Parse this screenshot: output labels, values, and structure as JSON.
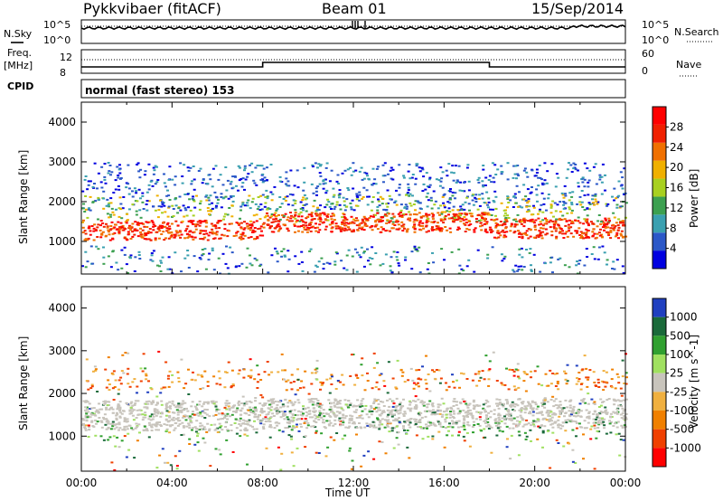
{
  "header": {
    "station": "Pykkvibaer (fitACF)",
    "beam": "Beam 01",
    "date": "15/Sep/2014"
  },
  "noise_panel": {
    "left_label": "N.Sky",
    "left_ticks": [
      "10^5",
      "10^0"
    ],
    "right_label": "N.Search",
    "right_ticks": [
      "10^5",
      "10^0"
    ]
  },
  "freq_panel": {
    "left_label_1": "Freq.",
    "left_label_2": "[MHz]",
    "left_ticks": [
      "12",
      "8"
    ],
    "right_label": "Nave",
    "right_ticks": [
      "60",
      "0"
    ]
  },
  "cpid_panel": {
    "label": "CPID",
    "text": "normal (fast stereo) 153"
  },
  "colors": {
    "power": [
      "#0000e0",
      "#2b58c8",
      "#3aa0b0",
      "#3ca050",
      "#a8d020",
      "#f0b000",
      "#f07000",
      "#f02000",
      "#ff0000"
    ],
    "velocity": [
      "#2040c0",
      "#1a6a3a",
      "#30a030",
      "#a0e060",
      "#c8c4bc",
      "#f0b040",
      "#f08000",
      "#f04000",
      "#ff0000"
    ],
    "ground_scatter": "#c8c4bc"
  },
  "chart_data": [
    {
      "type": "heatmap",
      "title": "",
      "xlabel": "",
      "ylabel": "Slant Range [km]",
      "xlim": [
        "00:00",
        "24:00"
      ],
      "ylim": [
        180,
        4500
      ],
      "ytick_labels": [
        "1000",
        "2000",
        "3000",
        "4000"
      ],
      "colorbar": {
        "label": "Power [dB]",
        "range": [
          0,
          32
        ],
        "tick_labels": [
          "28",
          "24",
          "20",
          "16",
          "12",
          "8",
          "4"
        ]
      },
      "features": [
        {
          "hours": [
            0,
            8
          ],
          "range_km": [
            900,
            1700
          ],
          "value_db": 22
        },
        {
          "hours": [
            8,
            18
          ],
          "range_km": [
            1250,
            1750
          ],
          "value_db": 26
        },
        {
          "hours": [
            18,
            24
          ],
          "range_km": [
            900,
            1800
          ],
          "value_db": 28
        },
        {
          "hours": [
            0,
            24
          ],
          "range_km": [
            1700,
            3000
          ],
          "value_db": 8
        }
      ]
    },
    {
      "type": "heatmap",
      "title": "",
      "xlabel": "Time UT",
      "ylabel": "Slant Range [km]",
      "xlim": [
        "00:00",
        "24:00"
      ],
      "ylim": [
        180,
        4500
      ],
      "xtick_labels": [
        "00:00",
        "04:00",
        "08:00",
        "12:00",
        "16:00",
        "20:00",
        "00:00"
      ],
      "ytick_labels": [
        "1000",
        "2000",
        "3000",
        "4000"
      ],
      "colorbar": {
        "label": "Velocity [m s^-1]",
        "tick_labels": [
          "1000",
          "500",
          "100",
          "25",
          "-25",
          "-100",
          "-500",
          "-1000"
        ]
      },
      "features": [
        {
          "hours": [
            0,
            24
          ],
          "range_km": [
            1200,
            2300
          ],
          "value_ms": 0,
          "note": "ground scatter"
        },
        {
          "hours": [
            9,
            11
          ],
          "range_km": [
            2200,
            2700
          ],
          "value_ms": -300
        },
        {
          "hours": [
            20,
            24
          ],
          "range_km": [
            900,
            1800
          ],
          "value_ms": 150
        }
      ]
    }
  ]
}
